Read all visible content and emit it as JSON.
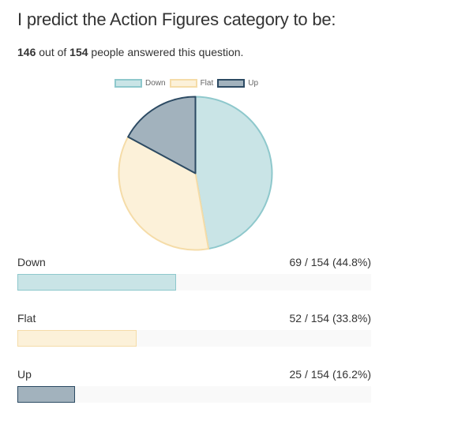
{
  "question": {
    "title": "I predict the Action Figures category to be:",
    "answered": "146",
    "out_of_text": "out of",
    "total": "154",
    "people_text": "people answered this question."
  },
  "colors": {
    "Down": {
      "fill": "#c9e4e6",
      "stroke": "#8ec8cc"
    },
    "Flat": {
      "fill": "#fcf1d9",
      "stroke": "#f5dca8"
    },
    "Up": {
      "fill": "#a2b2bd",
      "stroke": "#2c4a63"
    }
  },
  "chart_data": {
    "type": "pie",
    "title": "",
    "legend_position": "top",
    "categories": [
      "Down",
      "Flat",
      "Up"
    ],
    "values": [
      69,
      52,
      25
    ],
    "start_angle": "top",
    "direction": "clockwise"
  },
  "results": [
    {
      "label": "Down",
      "count": 69,
      "total": 154,
      "percent": 44.8,
      "text": "69 / 154 (44.8%)"
    },
    {
      "label": "Flat",
      "count": 52,
      "total": 154,
      "percent": 33.8,
      "text": "52 / 154 (33.8%)"
    },
    {
      "label": "Up",
      "count": 25,
      "total": 154,
      "percent": 16.2,
      "text": "25 / 154 (16.2%)"
    }
  ]
}
